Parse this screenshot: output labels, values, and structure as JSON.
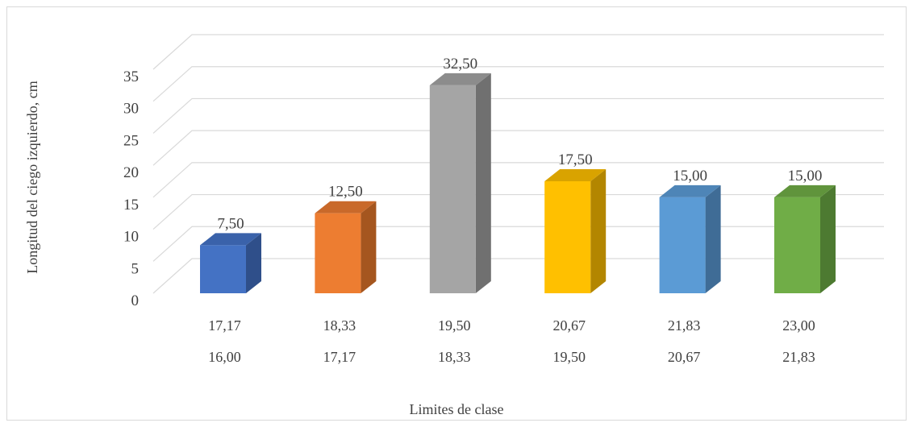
{
  "chart_data": {
    "type": "bar",
    "xlabel": "Limites de clase",
    "ylabel": "Longitud del ciego izquierdo, cm",
    "ylim": [
      0,
      35
    ],
    "yticks": [
      "0",
      "5",
      "10",
      "15",
      "20",
      "25",
      "30",
      "35"
    ],
    "grid": true,
    "categories": [
      {
        "upper": "17,17",
        "lower": "16,00"
      },
      {
        "upper": "18,33",
        "lower": "17,17"
      },
      {
        "upper": "19,50",
        "lower": "18,33"
      },
      {
        "upper": "20,67",
        "lower": "19,50"
      },
      {
        "upper": "21,83",
        "lower": "20,67"
      },
      {
        "upper": "23,00",
        "lower": "21,83"
      }
    ],
    "values": [
      7.5,
      12.5,
      32.5,
      17.5,
      15.0,
      15.0
    ],
    "data_labels": [
      "7,50",
      "12,50",
      "32,50",
      "17,50",
      "15,00",
      "15,00"
    ],
    "colors": [
      {
        "front": "#4472c4",
        "side": "#2f4f8a",
        "top": "#3a62aa"
      },
      {
        "front": "#ed7d31",
        "side": "#a5561f",
        "top": "#c9692a"
      },
      {
        "front": "#a5a5a5",
        "side": "#707070",
        "top": "#8c8c8c"
      },
      {
        "front": "#ffc000",
        "side": "#b38600",
        "top": "#d9a300"
      },
      {
        "front": "#5b9bd5",
        "side": "#3f6c96",
        "top": "#4e85b7"
      },
      {
        "front": "#70ad47",
        "side": "#4d7a31",
        "top": "#60943c"
      }
    ]
  }
}
